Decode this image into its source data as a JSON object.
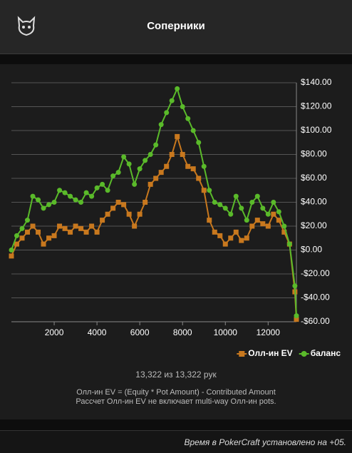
{
  "header": {
    "title": "Соперники"
  },
  "chart_data": {
    "type": "line",
    "x": [
      0,
      250,
      500,
      750,
      1000,
      1250,
      1500,
      1750,
      2000,
      2250,
      2500,
      2750,
      3000,
      3250,
      3500,
      3750,
      4000,
      4250,
      4500,
      4750,
      5000,
      5250,
      5500,
      5750,
      6000,
      6250,
      6500,
      6750,
      7000,
      7250,
      7500,
      7750,
      8000,
      8250,
      8500,
      8750,
      9000,
      9250,
      9500,
      9750,
      10000,
      10250,
      10500,
      10750,
      11000,
      11250,
      11500,
      11750,
      12000,
      12250,
      12500,
      12750,
      13000,
      13250,
      13322
    ],
    "series": [
      {
        "name": "Олл-ин EV",
        "color": "#c8781e",
        "marker": "square",
        "values": [
          -5,
          5,
          10,
          15,
          20,
          15,
          5,
          10,
          12,
          20,
          18,
          15,
          20,
          18,
          15,
          20,
          15,
          25,
          30,
          35,
          40,
          38,
          30,
          20,
          30,
          40,
          55,
          60,
          65,
          70,
          80,
          95,
          80,
          70,
          68,
          60,
          50,
          25,
          15,
          12,
          5,
          10,
          15,
          8,
          10,
          20,
          25,
          22,
          20,
          30,
          25,
          15,
          5,
          -35,
          -58
        ]
      },
      {
        "name": "баланс",
        "color": "#5aba2a",
        "marker": "circle",
        "values": [
          0,
          12,
          18,
          25,
          45,
          42,
          35,
          38,
          40,
          50,
          48,
          45,
          42,
          40,
          48,
          45,
          52,
          55,
          50,
          62,
          65,
          78,
          72,
          55,
          68,
          75,
          80,
          88,
          105,
          115,
          125,
          135,
          120,
          110,
          100,
          90,
          70,
          50,
          40,
          38,
          35,
          30,
          45,
          35,
          25,
          40,
          45,
          35,
          30,
          40,
          32,
          20,
          5,
          -30,
          -55
        ]
      }
    ],
    "xlim": [
      0,
      13322
    ],
    "xticks": [
      2000,
      4000,
      6000,
      8000,
      10000,
      12000
    ],
    "ylim": [
      -60,
      140
    ],
    "yticks": [
      {
        "value": 140,
        "label": "$140.00"
      },
      {
        "value": 120,
        "label": "$120.00"
      },
      {
        "value": 100,
        "label": "$100.00"
      },
      {
        "value": 80,
        "label": "$80.00"
      },
      {
        "value": 60,
        "label": "$60.00"
      },
      {
        "value": 40,
        "label": "$40.00"
      },
      {
        "value": 20,
        "label": "$20.00"
      },
      {
        "value": 0,
        "label": "$0.00"
      },
      {
        "value": -20,
        "label": "-$20.00"
      },
      {
        "value": -40,
        "label": "-$40.00"
      },
      {
        "value": -60,
        "label": "-$60.00"
      }
    ],
    "grid": true,
    "legend": "bottom-right",
    "hands_label": "13,322 из 13,322 рук",
    "notes": [
      "Олл-ин EV = (Equity * Pot Amount) - Contributed Amount",
      "Рассчет Олл-ин EV не включает multi-way Олл-ин pots."
    ]
  },
  "footer": {
    "text": "Время в PokerCraft установлено на +05."
  }
}
